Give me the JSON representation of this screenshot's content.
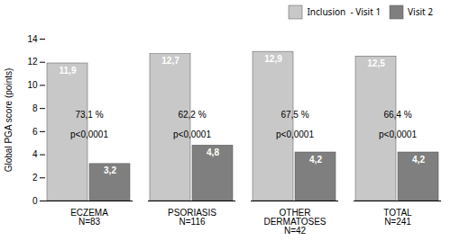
{
  "chart_data": {
    "type": "bar",
    "categories": [
      "ECZEMA\nN=83",
      "PSORIASIS\nN=116",
      "OTHER\nDERMATOSES\nN=42",
      "TOTAL\nN=241"
    ],
    "series": [
      {
        "name": "Inclusion  - Visit 1",
        "color": "#c8c8c8",
        "values": [
          11.9,
          12.7,
          12.9,
          12.5
        ],
        "value_labels": [
          "11,9",
          "12,7",
          "12,9",
          "12,5"
        ]
      },
      {
        "name": "Visit 2",
        "color": "#7f7f7f",
        "values": [
          3.2,
          4.8,
          4.2,
          4.2
        ],
        "value_labels": [
          "3,2",
          "4,8",
          "4,2",
          "4,2"
        ]
      }
    ],
    "ylabel": "Global PGA score (points)",
    "ylim": [
      0,
      14
    ],
    "yticks": [
      0,
      2,
      4,
      6,
      8,
      10,
      12,
      14
    ],
    "data_labels": true,
    "legend": "upper right",
    "annotations": [
      {
        "category": "ECZEMA\nN=83",
        "y": 7.2,
        "text": "73,1 %"
      },
      {
        "category": "PSORIASIS\nN=116",
        "y": 7.2,
        "text": "62,2 %"
      },
      {
        "category": "OTHER\nDERMATOSES\nN=42",
        "y": 7.2,
        "text": "67,5 %"
      },
      {
        "category": "TOTAL\nN=241",
        "y": 7.2,
        "text": "66,4 %"
      },
      {
        "category": "ECZEMA\nN=83",
        "y": 5.5,
        "text": "p<0,0001"
      },
      {
        "category": "PSORIASIS\nN=116",
        "y": 5.5,
        "text": "p<0,0001"
      },
      {
        "category": "OTHER\nDERMATOSES\nN=42",
        "y": 5.5,
        "text": "p<0,0001"
      },
      {
        "category": "TOTAL\nN=241",
        "y": 5.5,
        "text": "p<0,0001"
      }
    ]
  }
}
